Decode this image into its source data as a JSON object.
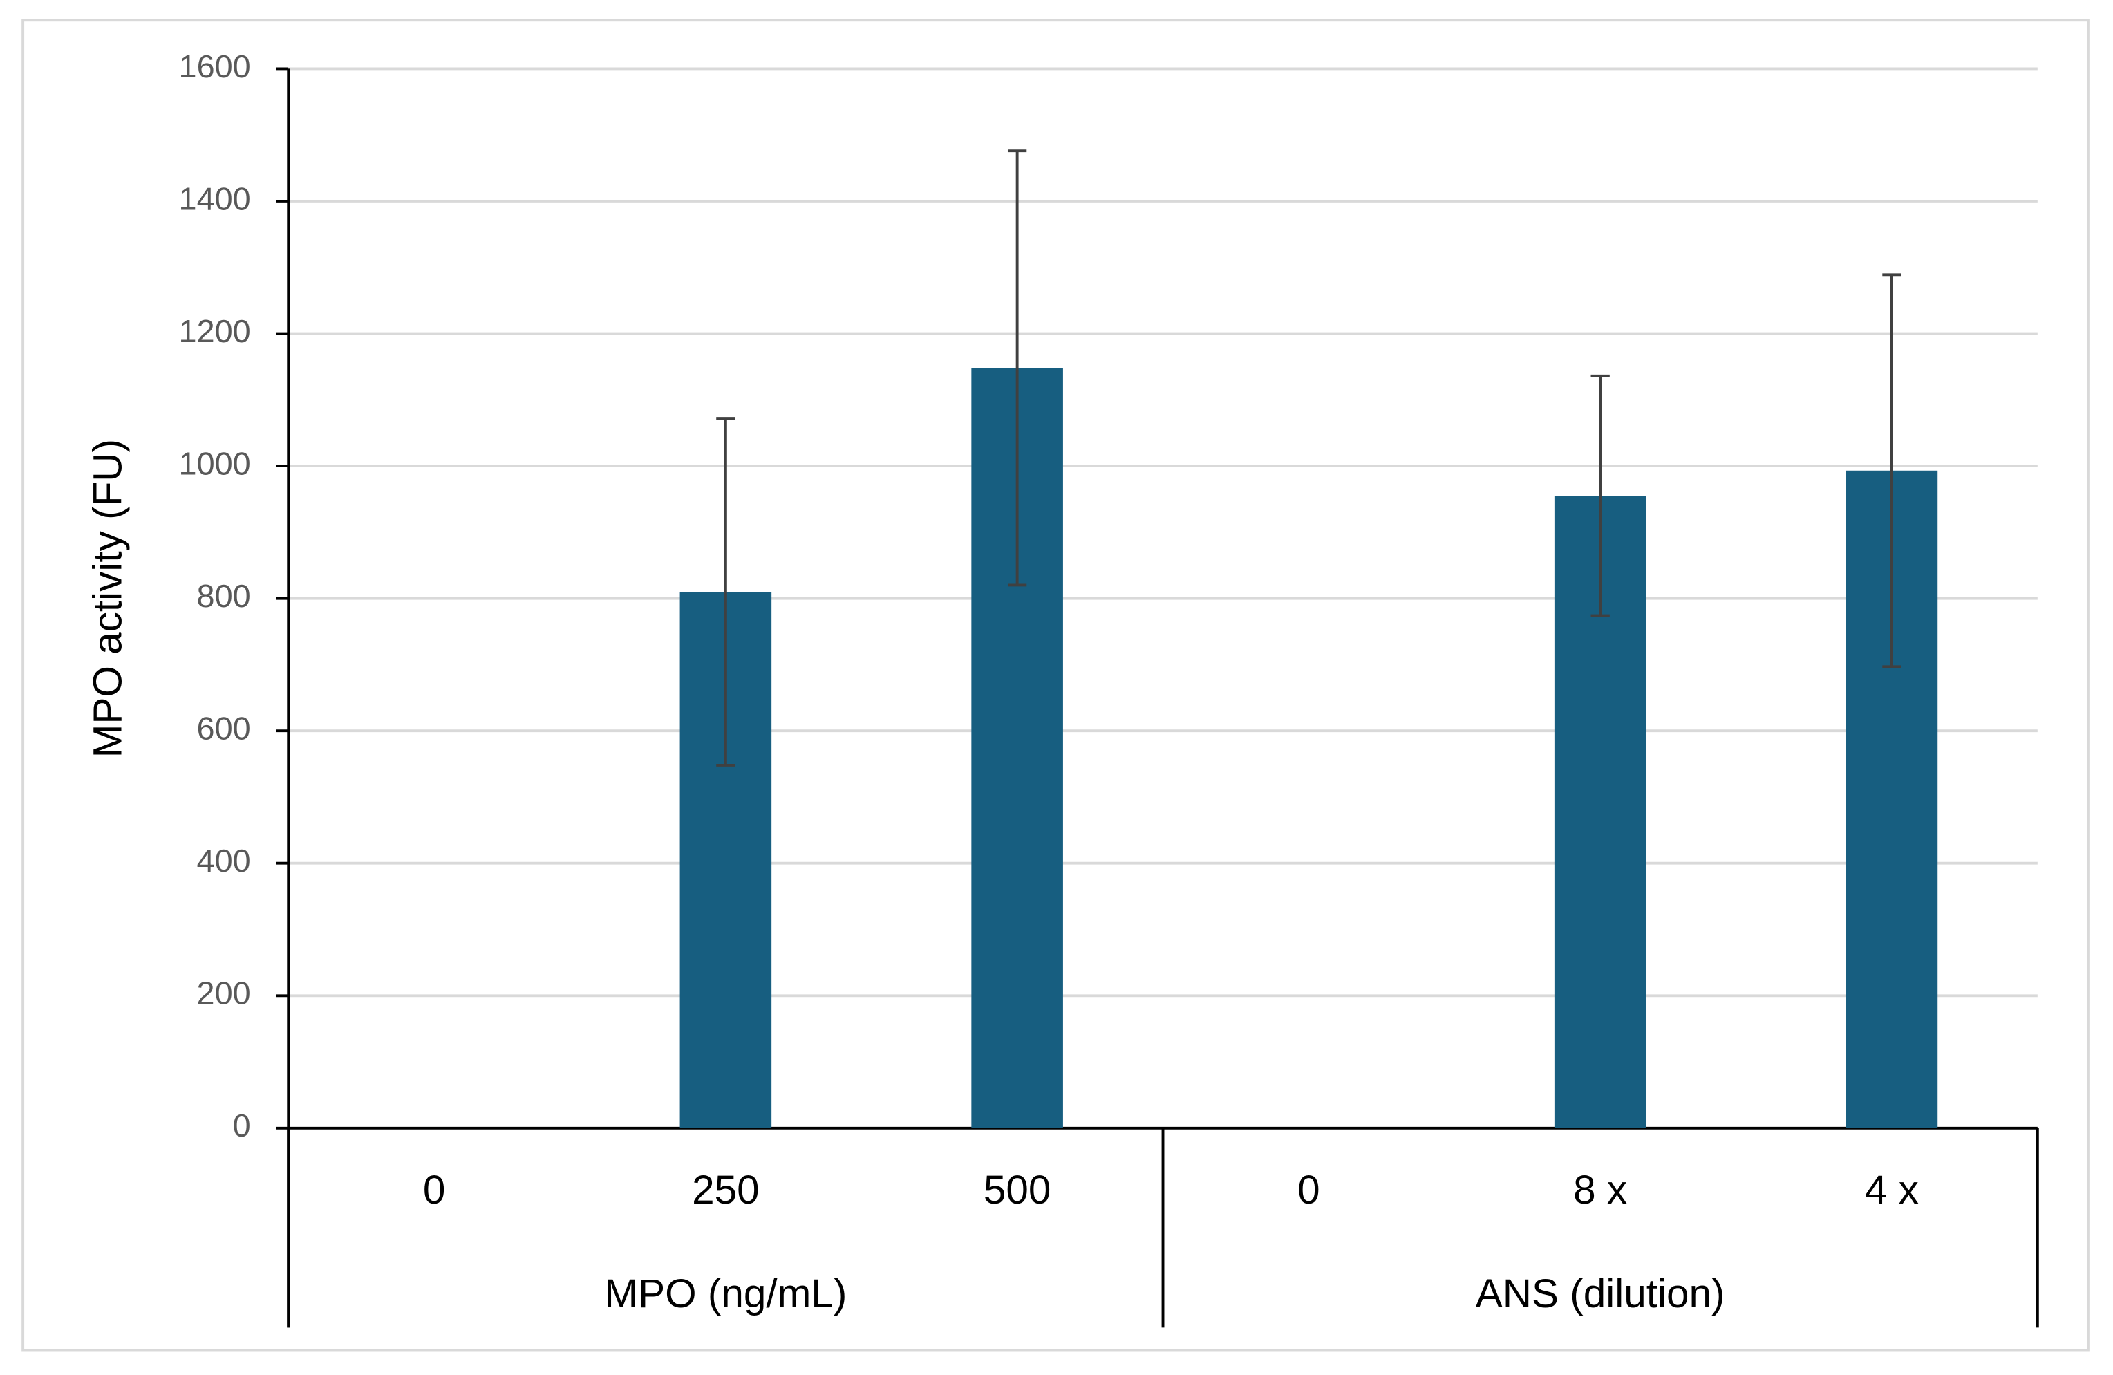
{
  "chart_data": {
    "type": "bar",
    "y_axis_label": "MPO activity (FU)",
    "categories": [
      "0",
      "250",
      "500",
      "0",
      "8 x",
      "4 x"
    ],
    "group_labels": [
      "MPO (ng/mL)",
      "ANS (dilution)"
    ],
    "values": [
      0,
      810,
      1148,
      0,
      955,
      993
    ],
    "errors": [
      null,
      262,
      328,
      null,
      181,
      296
    ],
    "color": "#175e80",
    "error_color": "#404040",
    "ylim": [
      0,
      1600
    ],
    "yticks": [
      0,
      200,
      400,
      600,
      800,
      1000,
      1200,
      1400,
      1600
    ],
    "grid": true
  }
}
